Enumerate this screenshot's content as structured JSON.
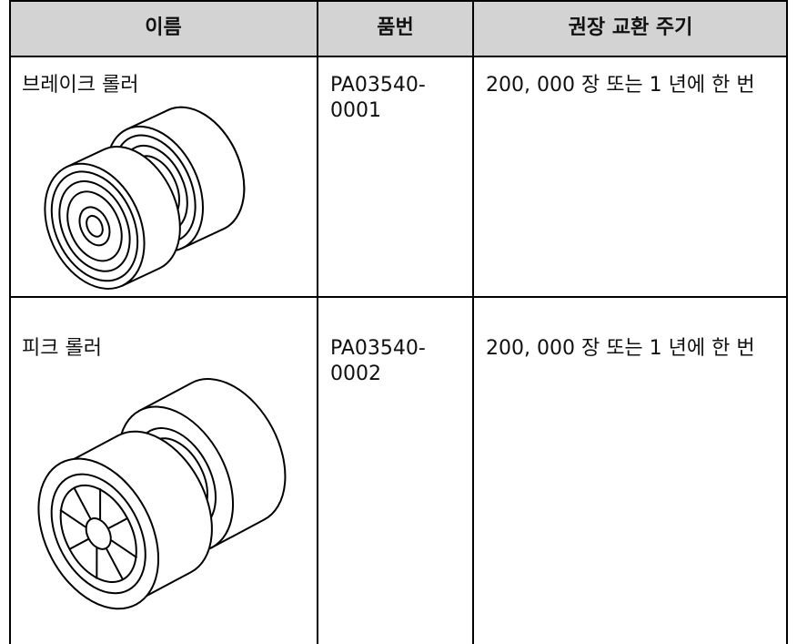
{
  "table": {
    "header": [
      "이름",
      "품번",
      "권장 교환 주기"
    ],
    "rows": [
      [
        "브레이크 롤러",
        "PA03540-0001",
        "200, 000 장 또는 1 년에 한 번"
      ],
      [
        "피크 롤러",
        "PA03540-0002",
        "200, 000 장 또는 1 년에 한 번"
      ]
    ]
  }
}
